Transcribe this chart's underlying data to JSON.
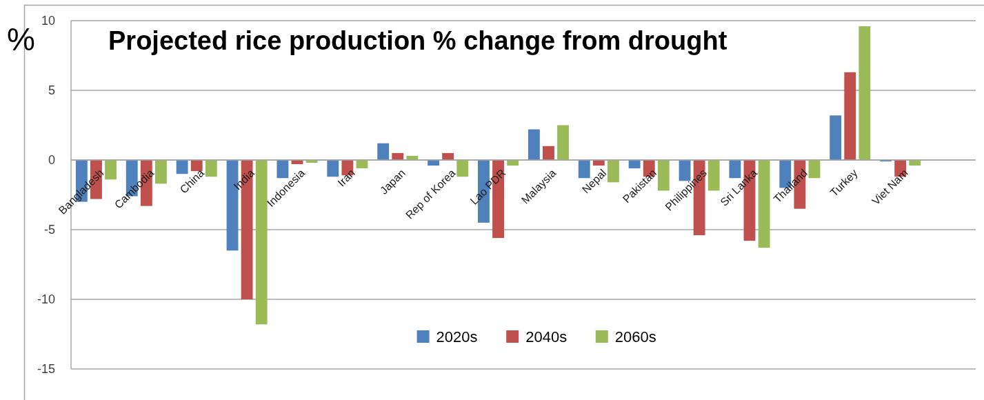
{
  "chart_data": {
    "type": "bar",
    "title": "Projected rice production % change from drought",
    "ylabel": "%",
    "categories": [
      "Bangladesh",
      "Cambodia",
      "China",
      "India",
      "Indonesia",
      "Iran",
      "Japan",
      "Rep of Korea",
      "Lao PDR",
      "Malaysia",
      "Nepal",
      "Pakistan",
      "Philippines",
      "Sri Lanka",
      "Thailand",
      "Turkey",
      "Viet Nam",
      null
    ],
    "series": [
      {
        "name": "2020s",
        "color": "#4f81bd",
        "values": [
          -3.0,
          -2.6,
          -1.0,
          -6.5,
          -1.3,
          -1.2,
          1.2,
          -0.4,
          -4.5,
          2.2,
          -1.3,
          -0.6,
          -1.5,
          -1.3,
          -2.0,
          3.2,
          -0.1,
          null
        ]
      },
      {
        "name": "2040s",
        "color": "#c0504d",
        "values": [
          -2.8,
          -3.3,
          -0.8,
          -10.0,
          -0.3,
          -1.1,
          0.5,
          0.5,
          -5.6,
          1.0,
          -0.4,
          -1.2,
          -5.4,
          -5.8,
          -3.5,
          6.3,
          -1.2,
          null
        ]
      },
      {
        "name": "2060s",
        "color": "#9bbb59",
        "values": [
          -1.4,
          -1.7,
          -1.2,
          -11.8,
          -0.2,
          -0.6,
          0.3,
          -1.2,
          -0.4,
          2.5,
          -1.6,
          -2.2,
          -2.2,
          -6.3,
          -1.3,
          9.6,
          -0.4,
          null
        ]
      }
    ],
    "ylim": [
      -15,
      10
    ],
    "yticks": [
      -15,
      -10,
      -5,
      0,
      5,
      10
    ],
    "grid": "y",
    "legend": "bottom"
  }
}
